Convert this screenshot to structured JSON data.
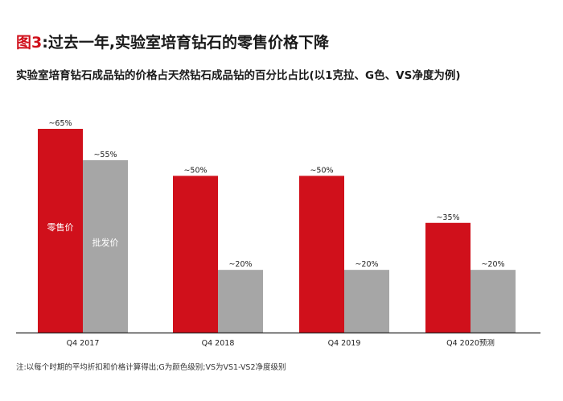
{
  "header": {
    "figure_label": "图3",
    "title_text": ":过去一年,实验室培育钻石的零售价格下降",
    "subtitle": "实验室培育钻石成品钻的价格占天然钻石成品钻的百分比占比(以1克拉、G色、VS净度为例)"
  },
  "footnote": "注:以每个时期的平均折扣和价格计算得出;G为颜色级别;VS为VS1-VS2净度级别",
  "colors": {
    "retail": "#d0101b",
    "wholesale": "#a6a6a6",
    "accent": "#d0101b"
  },
  "chart_data": {
    "type": "bar",
    "categories": [
      "Q4 2017",
      "Q4 2018",
      "Q4 2019",
      "Q4 2020预测"
    ],
    "series": [
      {
        "name": "零售价",
        "values": [
          65,
          50,
          50,
          35
        ],
        "labels": [
          "~65%",
          "~50%",
          "~50%",
          "~35%"
        ]
      },
      {
        "name": "批发价",
        "values": [
          55,
          20,
          20,
          20
        ],
        "labels": [
          "~55%",
          "~20%",
          "~20%",
          "~20%"
        ]
      }
    ],
    "ylim": [
      0,
      65
    ],
    "grid": false,
    "legend": "in-bar labels on first group"
  }
}
